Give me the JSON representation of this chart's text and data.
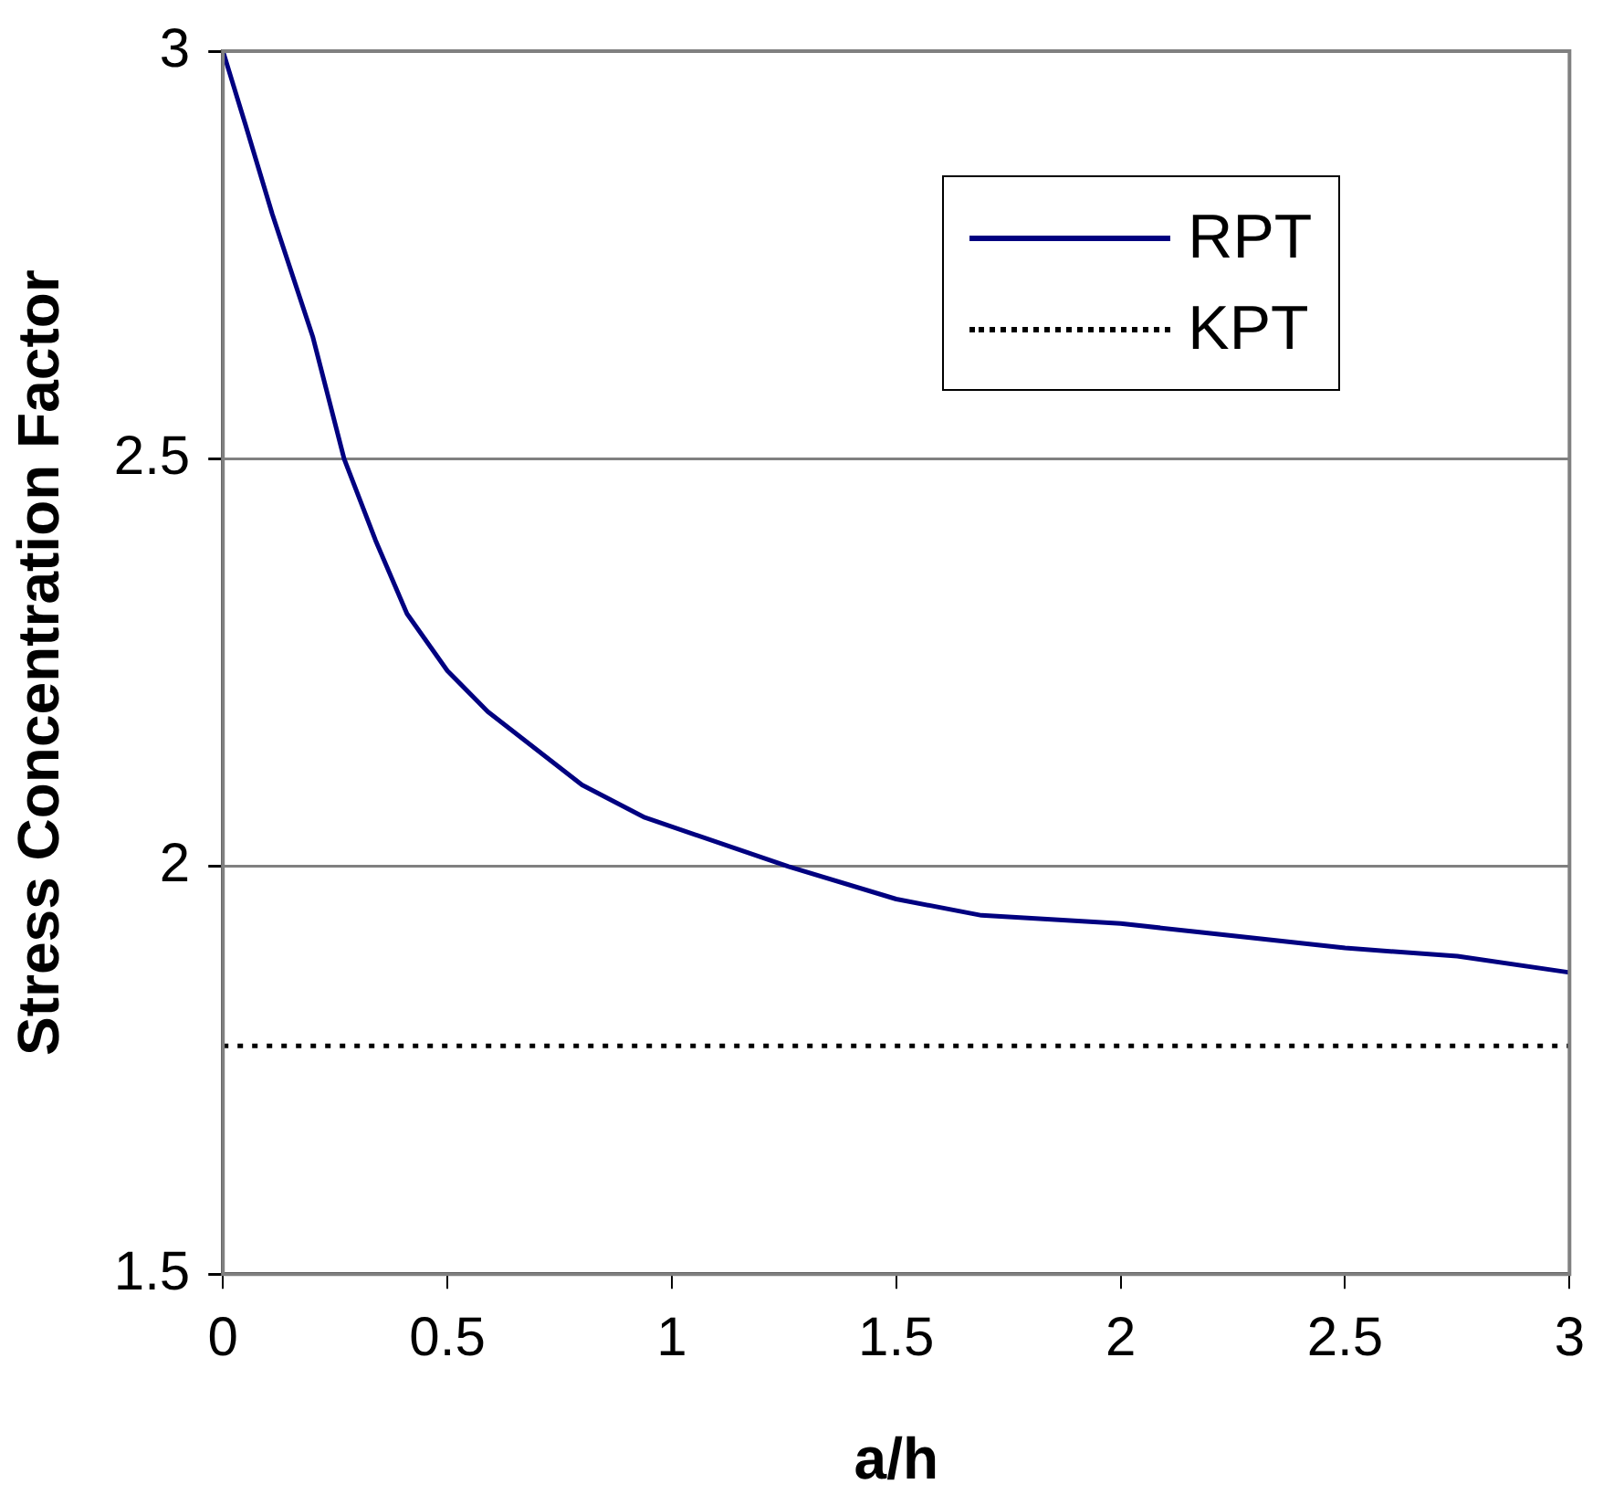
{
  "chart_data": {
    "type": "line",
    "xlabel": "a/h",
    "ylabel": "Stress Concentration Factor",
    "xlim": [
      0,
      3
    ],
    "ylim": [
      1.5,
      3
    ],
    "xticks": [
      0,
      0.5,
      1,
      1.5,
      2,
      2.5,
      3
    ],
    "yticks": [
      1.5,
      2,
      2.5,
      3
    ],
    "grid": "y",
    "legend": "top right",
    "marker": "none",
    "series": [
      {
        "name": "RPT",
        "color": "#000080",
        "line_style": "solid",
        "x": [
          0,
          0.05,
          0.11,
          0.2,
          0.27,
          0.34,
          0.41,
          0.5,
          0.59,
          0.8,
          0.94,
          1.26,
          1.5,
          1.69,
          2,
          2.5,
          2.75,
          3
        ],
        "values": [
          3,
          2.91,
          2.8,
          2.65,
          2.5,
          2.4,
          2.31,
          2.24,
          2.19,
          2.1,
          2.06,
          2,
          1.96,
          1.94,
          1.93,
          1.9,
          1.89,
          1.87
        ]
      },
      {
        "name": "KPT",
        "color": "#000000",
        "line_style": "dotted",
        "x": [
          0,
          3
        ],
        "values": [
          1.78,
          1.78
        ]
      }
    ]
  }
}
